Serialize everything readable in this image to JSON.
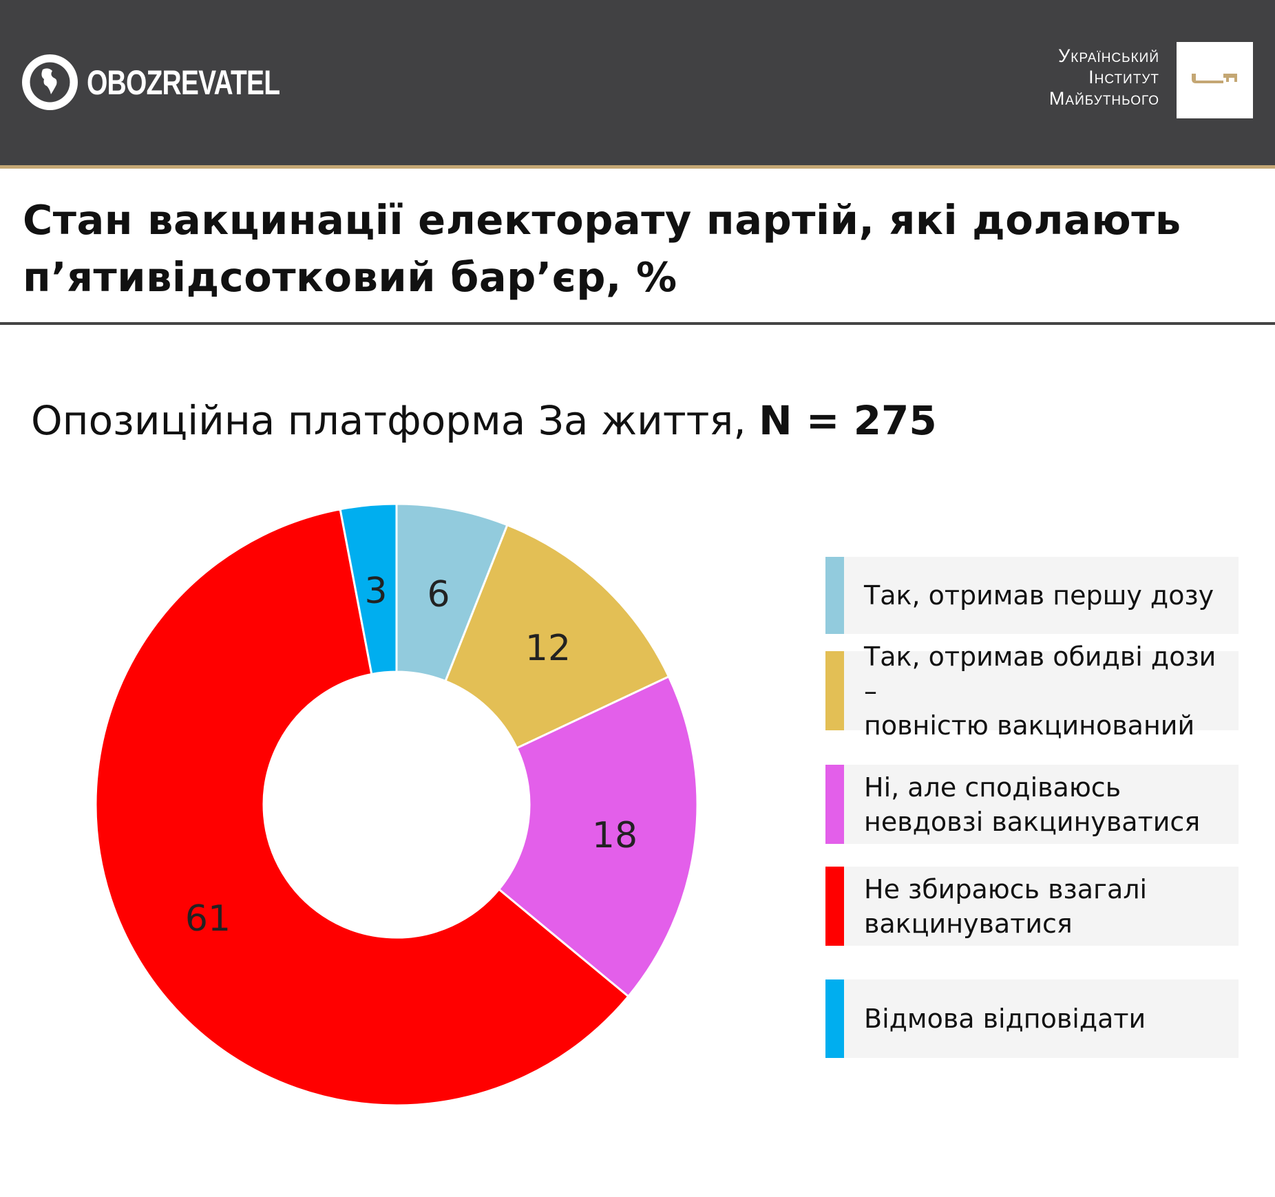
{
  "header": {
    "brand": "OBOZREVATEL",
    "institute_lines": [
      "Український",
      "Інститут",
      "Майбутнього"
    ]
  },
  "title_lines": [
    "Стан вакцинації електорату партій, які долають",
    "п’ятивідсотковий бар’єр, %"
  ],
  "subtitle": {
    "party": "Опозиційна платформа За життя, ",
    "n": "N = 275"
  },
  "chart_data": {
    "type": "pie",
    "donut": true,
    "title": "Опозиційна платформа За життя, N = 275",
    "categories": [
      "Так, отримав першу дозу",
      "Так, отримав обидві дози – повністю вакцинований",
      "Ні, але сподіваюсь невдовзі вакцинуватися",
      "Не збираюсь взагалі вакцинуватися",
      "Відмова відповідати"
    ],
    "values": [
      6,
      12,
      18,
      61,
      3
    ],
    "labels": [
      "6",
      "12",
      "18",
      "61",
      "3"
    ],
    "colors": [
      "#92cbdd",
      "#e3bf55",
      "#e35fea",
      "#ff0000",
      "#00aeef"
    ],
    "legend_position": "right"
  },
  "legend": [
    {
      "lines": [
        "Так, отримав першу дозу"
      ]
    },
    {
      "lines": [
        "Так, отримав обидві дози –",
        "повністю вакцинований"
      ]
    },
    {
      "lines": [
        "Ні, але сподіваюсь",
        "невдовзі вакцинуватися"
      ]
    },
    {
      "lines": [
        "Не збираюсь взагалі",
        "вакцинуватися"
      ]
    },
    {
      "lines": [
        "Відмова відповідати"
      ]
    }
  ]
}
